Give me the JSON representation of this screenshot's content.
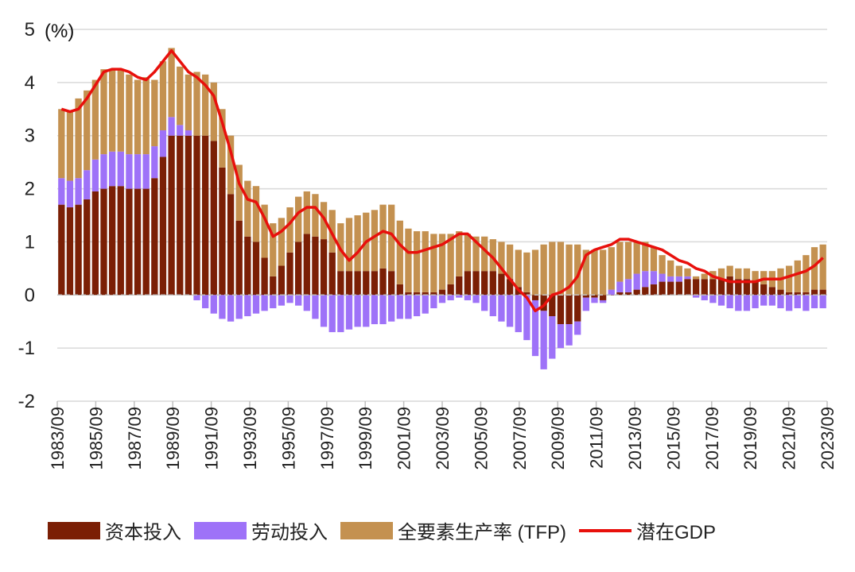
{
  "chart_data": {
    "type": "bar",
    "stacked": true,
    "unit_label": "(%)",
    "ylim": [
      -2,
      5
    ],
    "yticks": [
      "5",
      "4",
      "3",
      "2",
      "1",
      "0",
      "-1",
      "-2"
    ],
    "grid": true,
    "legend_position": "bottom",
    "x_tick_labels": [
      "1983/09",
      "1985/09",
      "1987/09",
      "1989/09",
      "1991/09",
      "1993/09",
      "1995/09",
      "1997/09",
      "1999/09",
      "2001/09",
      "2003/09",
      "2005/09",
      "2007/09",
      "2009/09",
      "2011/09",
      "2013/09",
      "2015/09",
      "2017/09",
      "2019/09",
      "2021/09",
      "2023/09"
    ],
    "series": [
      {
        "name": "资本投入",
        "color": "#7b1f05",
        "kind": "bar",
        "values": [
          1.7,
          1.65,
          1.7,
          1.8,
          1.95,
          2.0,
          2.05,
          2.05,
          2.0,
          2.0,
          2.0,
          2.2,
          2.6,
          3.0,
          3.0,
          3.0,
          3.0,
          3.0,
          2.9,
          2.4,
          1.9,
          1.4,
          1.1,
          1.0,
          0.7,
          0.35,
          0.55,
          0.8,
          1.0,
          1.15,
          1.1,
          1.05,
          0.8,
          0.45,
          0.45,
          0.45,
          0.45,
          0.45,
          0.5,
          0.45,
          0.2,
          0.05,
          0.05,
          0.05,
          0.05,
          0.1,
          0.2,
          0.35,
          0.45,
          0.45,
          0.45,
          0.45,
          0.4,
          0.3,
          0.15,
          0.05,
          -0.1,
          -0.3,
          -0.4,
          -0.55,
          -0.55,
          -0.5,
          -0.05,
          -0.05,
          -0.1,
          0.0,
          0.05,
          0.05,
          0.1,
          0.15,
          0.2,
          0.25,
          0.25,
          0.25,
          0.3,
          0.3,
          0.3,
          0.3,
          0.3,
          0.35,
          0.3,
          0.3,
          0.25,
          0.2,
          0.15,
          0.1,
          0.05,
          0.05,
          0.05,
          0.1,
          0.1
        ]
      },
      {
        "name": "劳动投入",
        "color": "#9e72f8",
        "kind": "bar",
        "values": [
          0.5,
          0.5,
          0.5,
          0.55,
          0.6,
          0.65,
          0.65,
          0.65,
          0.65,
          0.65,
          0.65,
          0.6,
          0.5,
          0.35,
          0.2,
          0.1,
          -0.1,
          -0.25,
          -0.35,
          -0.45,
          -0.5,
          -0.45,
          -0.4,
          -0.35,
          -0.3,
          -0.25,
          -0.2,
          -0.15,
          -0.2,
          -0.3,
          -0.45,
          -0.6,
          -0.7,
          -0.7,
          -0.65,
          -0.6,
          -0.6,
          -0.55,
          -0.55,
          -0.5,
          -0.45,
          -0.45,
          -0.4,
          -0.35,
          -0.25,
          -0.15,
          -0.1,
          -0.05,
          -0.1,
          -0.15,
          -0.3,
          -0.4,
          -0.5,
          -0.6,
          -0.7,
          -0.85,
          -1.05,
          -1.1,
          -0.8,
          -0.45,
          -0.4,
          -0.25,
          -0.25,
          -0.1,
          -0.05,
          0.1,
          0.2,
          0.25,
          0.3,
          0.3,
          0.25,
          0.15,
          0.1,
          0.1,
          0.05,
          -0.05,
          -0.1,
          -0.15,
          -0.2,
          -0.25,
          -0.3,
          -0.3,
          -0.25,
          -0.2,
          -0.2,
          -0.25,
          -0.3,
          -0.25,
          -0.3,
          -0.25,
          -0.25
        ]
      },
      {
        "name": "全要素生产率 (TFP)",
        "color": "#c49150",
        "kind": "bar",
        "values": [
          1.3,
          1.3,
          1.5,
          1.5,
          1.5,
          1.6,
          1.55,
          1.55,
          1.5,
          1.4,
          1.45,
          1.25,
          1.3,
          1.3,
          1.1,
          1.05,
          1.2,
          1.15,
          1.1,
          1.1,
          1.1,
          1.05,
          1.05,
          1.05,
          1.0,
          1.0,
          0.9,
          0.85,
          0.85,
          0.8,
          0.8,
          0.7,
          0.8,
          0.9,
          1.0,
          1.05,
          1.1,
          1.15,
          1.2,
          1.25,
          1.2,
          1.2,
          1.15,
          1.15,
          1.1,
          1.05,
          0.95,
          0.85,
          0.7,
          0.65,
          0.65,
          0.6,
          0.6,
          0.65,
          0.7,
          0.75,
          0.85,
          0.95,
          1.0,
          1.0,
          0.95,
          0.95,
          0.85,
          0.85,
          0.85,
          0.8,
          0.75,
          0.7,
          0.6,
          0.55,
          0.45,
          0.35,
          0.3,
          0.2,
          0.15,
          0.05,
          0.1,
          0.15,
          0.2,
          0.2,
          0.2,
          0.2,
          0.2,
          0.25,
          0.3,
          0.4,
          0.5,
          0.6,
          0.7,
          0.8,
          0.85
        ]
      },
      {
        "name": "潜在GDP",
        "color": "#e8100c",
        "kind": "line",
        "values": [
          3.5,
          3.45,
          3.5,
          3.7,
          3.95,
          4.2,
          4.25,
          4.25,
          4.2,
          4.1,
          4.05,
          4.2,
          4.4,
          4.6,
          4.4,
          4.2,
          4.1,
          3.95,
          3.75,
          3.25,
          2.7,
          2.1,
          1.8,
          1.75,
          1.45,
          1.1,
          1.2,
          1.35,
          1.55,
          1.65,
          1.65,
          1.45,
          1.15,
          0.85,
          0.65,
          0.8,
          1.0,
          1.1,
          1.2,
          1.15,
          0.95,
          0.8,
          0.8,
          0.85,
          0.9,
          0.95,
          1.05,
          1.15,
          1.15,
          1.0,
          0.85,
          0.7,
          0.5,
          0.3,
          0.1,
          -0.05,
          -0.3,
          -0.2,
          0.0,
          0.05,
          0.15,
          0.35,
          0.75,
          0.85,
          0.9,
          0.95,
          1.05,
          1.05,
          1.0,
          0.95,
          0.9,
          0.85,
          0.75,
          0.65,
          0.6,
          0.5,
          0.45,
          0.35,
          0.3,
          0.25,
          0.25,
          0.25,
          0.25,
          0.3,
          0.3,
          0.3,
          0.35,
          0.4,
          0.45,
          0.55,
          0.7
        ]
      }
    ]
  }
}
